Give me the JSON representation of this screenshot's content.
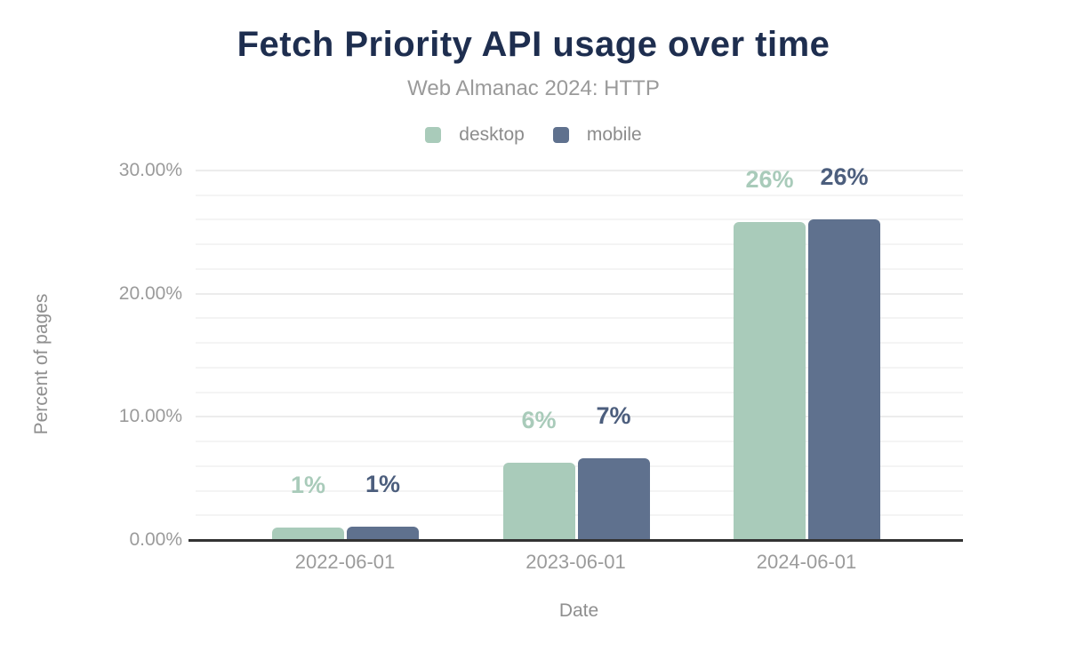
{
  "chart_data": {
    "type": "bar",
    "title": "Fetch Priority API usage over time",
    "subtitle": "Web Almanac 2024: HTTP",
    "xlabel": "Date",
    "ylabel": "Percent of pages",
    "categories": [
      "2022-06-01",
      "2023-06-01",
      "2024-06-01"
    ],
    "series": [
      {
        "name": "desktop",
        "color": "#a9cbba",
        "label_color": "#a9cbba",
        "values": [
          1.0,
          6.3,
          25.8
        ],
        "labels": [
          "1%",
          "6%",
          "26%"
        ]
      },
      {
        "name": "mobile",
        "color": "#5f718e",
        "label_color": "#4c5e7d",
        "values": [
          1.1,
          6.6,
          26.0
        ],
        "labels": [
          "1%",
          "7%",
          "26%"
        ]
      }
    ],
    "yticks": [
      {
        "value": 0,
        "label": "0.00%"
      },
      {
        "value": 10,
        "label": "10.00%"
      },
      {
        "value": 20,
        "label": "20.00%"
      },
      {
        "value": 30,
        "label": "30.00%"
      }
    ],
    "ylim": [
      0,
      30
    ],
    "grid": {
      "show": true,
      "minor_step": 2,
      "major_step": 10
    },
    "legend_position": "top",
    "colors": {
      "title": "#1e2e4f",
      "subtitle": "#9a9a9a",
      "axis_text": "#9b9b9b",
      "baseline": "#333333",
      "grid_minor": "#f4f4f4",
      "grid_major": "#ececec",
      "background": "#ffffff"
    }
  }
}
